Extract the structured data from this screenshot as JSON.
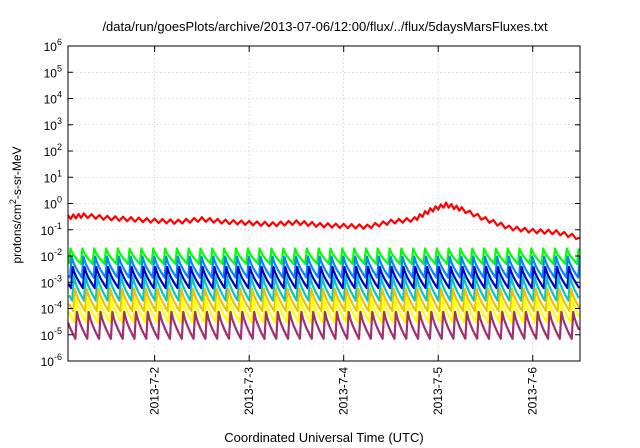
{
  "chart_data": {
    "type": "line",
    "title": "/data/run/goesPlots/archive/2013-07-06/12:00/flux/../flux/5daysMarsFluxes.txt",
    "xlabel": "Coordinated Universal Time (UTC)",
    "ylabel": "protons/cm2-s-sr-MeV",
    "ylabel_parts": {
      "pre": "protons/cm",
      "sup": "2",
      "post": "-s-sr-MeV"
    },
    "y_scale": "log",
    "ylim": [
      1e-06,
      1000000
    ],
    "xlim": [
      "2013-07-01 02:00",
      "2013-07-06 12:00"
    ],
    "grid": true,
    "x_ticks": [
      "2013-7-2",
      "2013-7-3",
      "2013-7-4",
      "2013-7-5",
      "2013-7-6"
    ],
    "y_ticks": [
      {
        "base": "10",
        "exp": "-6",
        "value": 1e-06
      },
      {
        "base": "10",
        "exp": "-5",
        "value": 1e-05
      },
      {
        "base": "10",
        "exp": "-4",
        "value": 0.0001
      },
      {
        "base": "10",
        "exp": "-3",
        "value": 0.001
      },
      {
        "base": "10",
        "exp": "-2",
        "value": 0.01
      },
      {
        "base": "10",
        "exp": "-1",
        "value": 0.1
      },
      {
        "base": "10",
        "exp": "0",
        "value": 1
      },
      {
        "base": "10",
        "exp": "1",
        "value": 10
      },
      {
        "base": "10",
        "exp": "2",
        "value": 100
      },
      {
        "base": "10",
        "exp": "3",
        "value": 1000
      },
      {
        "base": "10",
        "exp": "4",
        "value": 10000
      },
      {
        "base": "10",
        "exp": "5",
        "value": 100000
      },
      {
        "base": "10",
        "exp": "6",
        "value": 1000000
      }
    ],
    "series": [
      {
        "color": "#ff0000",
        "x": [
          "2013-07-01 02:00",
          "2013-07-01 06:00",
          "2013-07-01 12:00",
          "2013-07-01 18:00",
          "2013-07-02 00:00",
          "2013-07-02 06:00",
          "2013-07-02 12:00",
          "2013-07-02 18:00",
          "2013-07-03 00:00",
          "2013-07-03 06:00",
          "2013-07-03 12:00",
          "2013-07-03 18:00",
          "2013-07-04 00:00",
          "2013-07-04 06:00",
          "2013-07-04 12:00",
          "2013-07-04 18:00",
          "2013-07-04 22:00",
          "2013-07-05 02:00",
          "2013-07-05 06:00",
          "2013-07-05 12:00",
          "2013-07-05 18:00",
          "2013-07-06 00:00",
          "2013-07-06 06:00",
          "2013-07-06 12:00"
        ],
        "y": [
          0.3,
          0.35,
          0.28,
          0.25,
          0.22,
          0.2,
          0.25,
          0.2,
          0.18,
          0.16,
          0.19,
          0.15,
          0.14,
          0.13,
          0.2,
          0.25,
          0.55,
          0.9,
          0.6,
          0.25,
          0.12,
          0.09,
          0.08,
          0.05
        ]
      },
      {
        "color": "#00ff00",
        "peak": 0.02,
        "trough": 0.005
      },
      {
        "color": "#0088ff",
        "peak": 0.01,
        "trough": 0.0015
      },
      {
        "color": "#0000cc",
        "peak": 0.004,
        "trough": 0.0006
      },
      {
        "color": "#00c8c8",
        "peak": 0.0018,
        "trough": 0.0002
      },
      {
        "color": "#eec000",
        "peak": 0.0006,
        "trough": 8e-05
      },
      {
        "color": "#ffff00",
        "peak": 0.00025,
        "trough": 3e-05
      },
      {
        "color": "#a03070",
        "peak": 8e-05,
        "trough": 7e-06
      }
    ]
  }
}
